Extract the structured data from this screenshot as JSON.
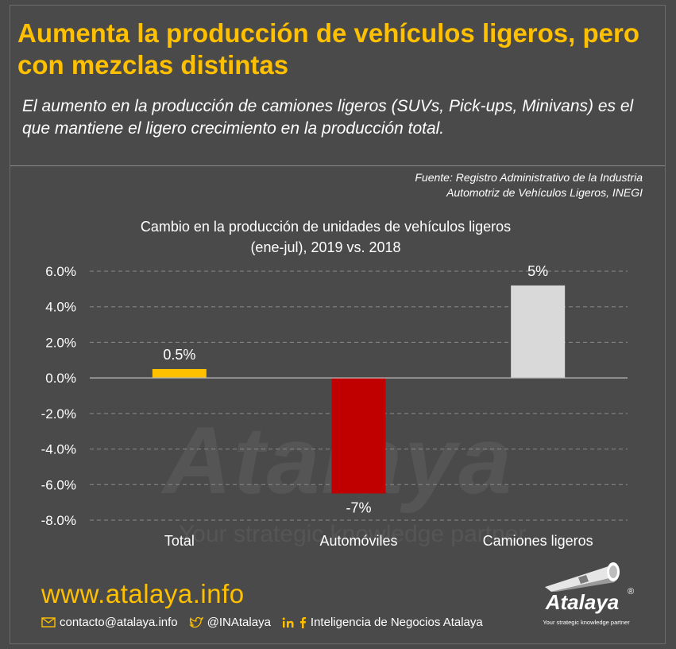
{
  "header": {
    "title": "Aumenta la producción de vehículos ligeros, pero con mezclas distintas",
    "subtitle": "El aumento en la producción de camiones ligeros (SUVs, Pick-ups, Minivans) es el que mantiene el ligero crecimiento en la producción total.",
    "source_line1": "Fuente: Registro Administrativo de la Industria",
    "source_line2": "Automotriz de Vehículos Ligeros, INEGI"
  },
  "chart_data": {
    "type": "bar",
    "title_line1": "Cambio en la producción de unidades de vehículos ligeros",
    "title_line2": "(ene-jul), 2019 vs. 2018",
    "categories": [
      "Total",
      "Automóviles",
      "Camiones ligeros"
    ],
    "values": [
      0.5,
      -6.5,
      5.2
    ],
    "data_labels": [
      "0.5%",
      "-7%",
      "5%"
    ],
    "colors": [
      "#ffc000",
      "#c00000",
      "#d9d9d9"
    ],
    "ylim": [
      -8,
      6
    ],
    "yticks": [
      6,
      4,
      2,
      0,
      -2,
      -4,
      -6,
      -8
    ],
    "ytick_labels": [
      "6.0%",
      "4.0%",
      "2.0%",
      "0.0%",
      "-2.0%",
      "-4.0%",
      "-6.0%",
      "-8.0%"
    ],
    "grid": true,
    "xlabel": "",
    "ylabel": ""
  },
  "watermark": {
    "brand": "Atalaya",
    "tagline": "Your strategic knowledge partner"
  },
  "footer": {
    "url": "www.atalaya.info",
    "email": "contacto@atalaya.info",
    "twitter": "@INAtalaya",
    "company": "Inteligencia de Negocios Atalaya",
    "icons": [
      "envelope-icon",
      "twitter-icon",
      "linkedin-icon",
      "facebook-icon"
    ]
  },
  "brand": {
    "name": "Atalaya",
    "tagline": "Your strategic knowledge partner",
    "reg": "®"
  }
}
